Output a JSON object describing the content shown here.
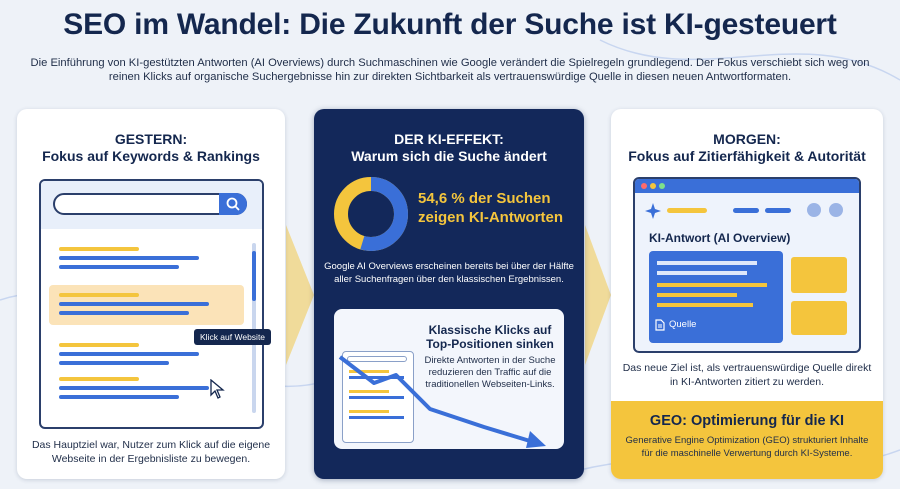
{
  "title": "SEO im Wandel: Die Zukunft der Suche ist KI-gesteuert",
  "intro": "Die Einführung von KI-gestützten Antworten (AI Overviews) durch Suchmaschinen wie Google verändert die Spielregeln grundlegend. Der Fokus verschiebt sich weg von reinen Klicks auf organische Suchergebnisse hin zur direkten Sichtbarkeit als vertrauenswürdige Quelle in diesen neuen Antwortformaten.",
  "colors": {
    "navy": "#14274e",
    "blue": "#3a6fd8",
    "yellow": "#f4c53d",
    "light": "#eef2f8"
  },
  "left": {
    "heading_line1": "GESTERN:",
    "heading_line2": "Fokus auf Keywords & Rankings",
    "tooltip": "Klick auf Website",
    "caption": "Das Hauptziel war, Nutzer zum Klick auf die eigene Webseite in der Ergebnisliste zu bewegen.",
    "icons": [
      "search-icon",
      "cursor-icon"
    ]
  },
  "middle": {
    "heading_line1": "DER KI-EFFEKT:",
    "heading_line2": "Warum sich die Suche ändert",
    "stat_line1": "54,6 % der Suchen",
    "stat_line2": "zeigen KI-Antworten",
    "stat_value_percent": 54.6,
    "subtext": "Google AI Overviews erscheinen bereits bei über der Hälfte aller Suchenfragen über den klassischen Ergebnissen.",
    "card_title": "Klassische Klicks auf Top-Positionen sinken",
    "card_text": "Direkte Antworten in der Suche reduzieren den Traffic auf die traditionellen Webseiten-Links."
  },
  "right": {
    "heading_line1": "MORGEN:",
    "heading_line2": "Fokus auf Zitierfähigkeit & Autorität",
    "ai_label": "KI-Antwort (AI Overview)",
    "source_label": "Quelle",
    "caption": "Das neue Ziel ist, als vertrauenswürdige Quelle direkt in KI-Antworten zitiert zu werden.",
    "geo_title": "GEO: Optimierung für die KI",
    "geo_text": "Generative Engine Optimization (GEO) strukturiert Inhalte für die maschinelle Verwertung durch KI-Systeme.",
    "icons": [
      "sparkle-icon",
      "document-icon"
    ]
  }
}
